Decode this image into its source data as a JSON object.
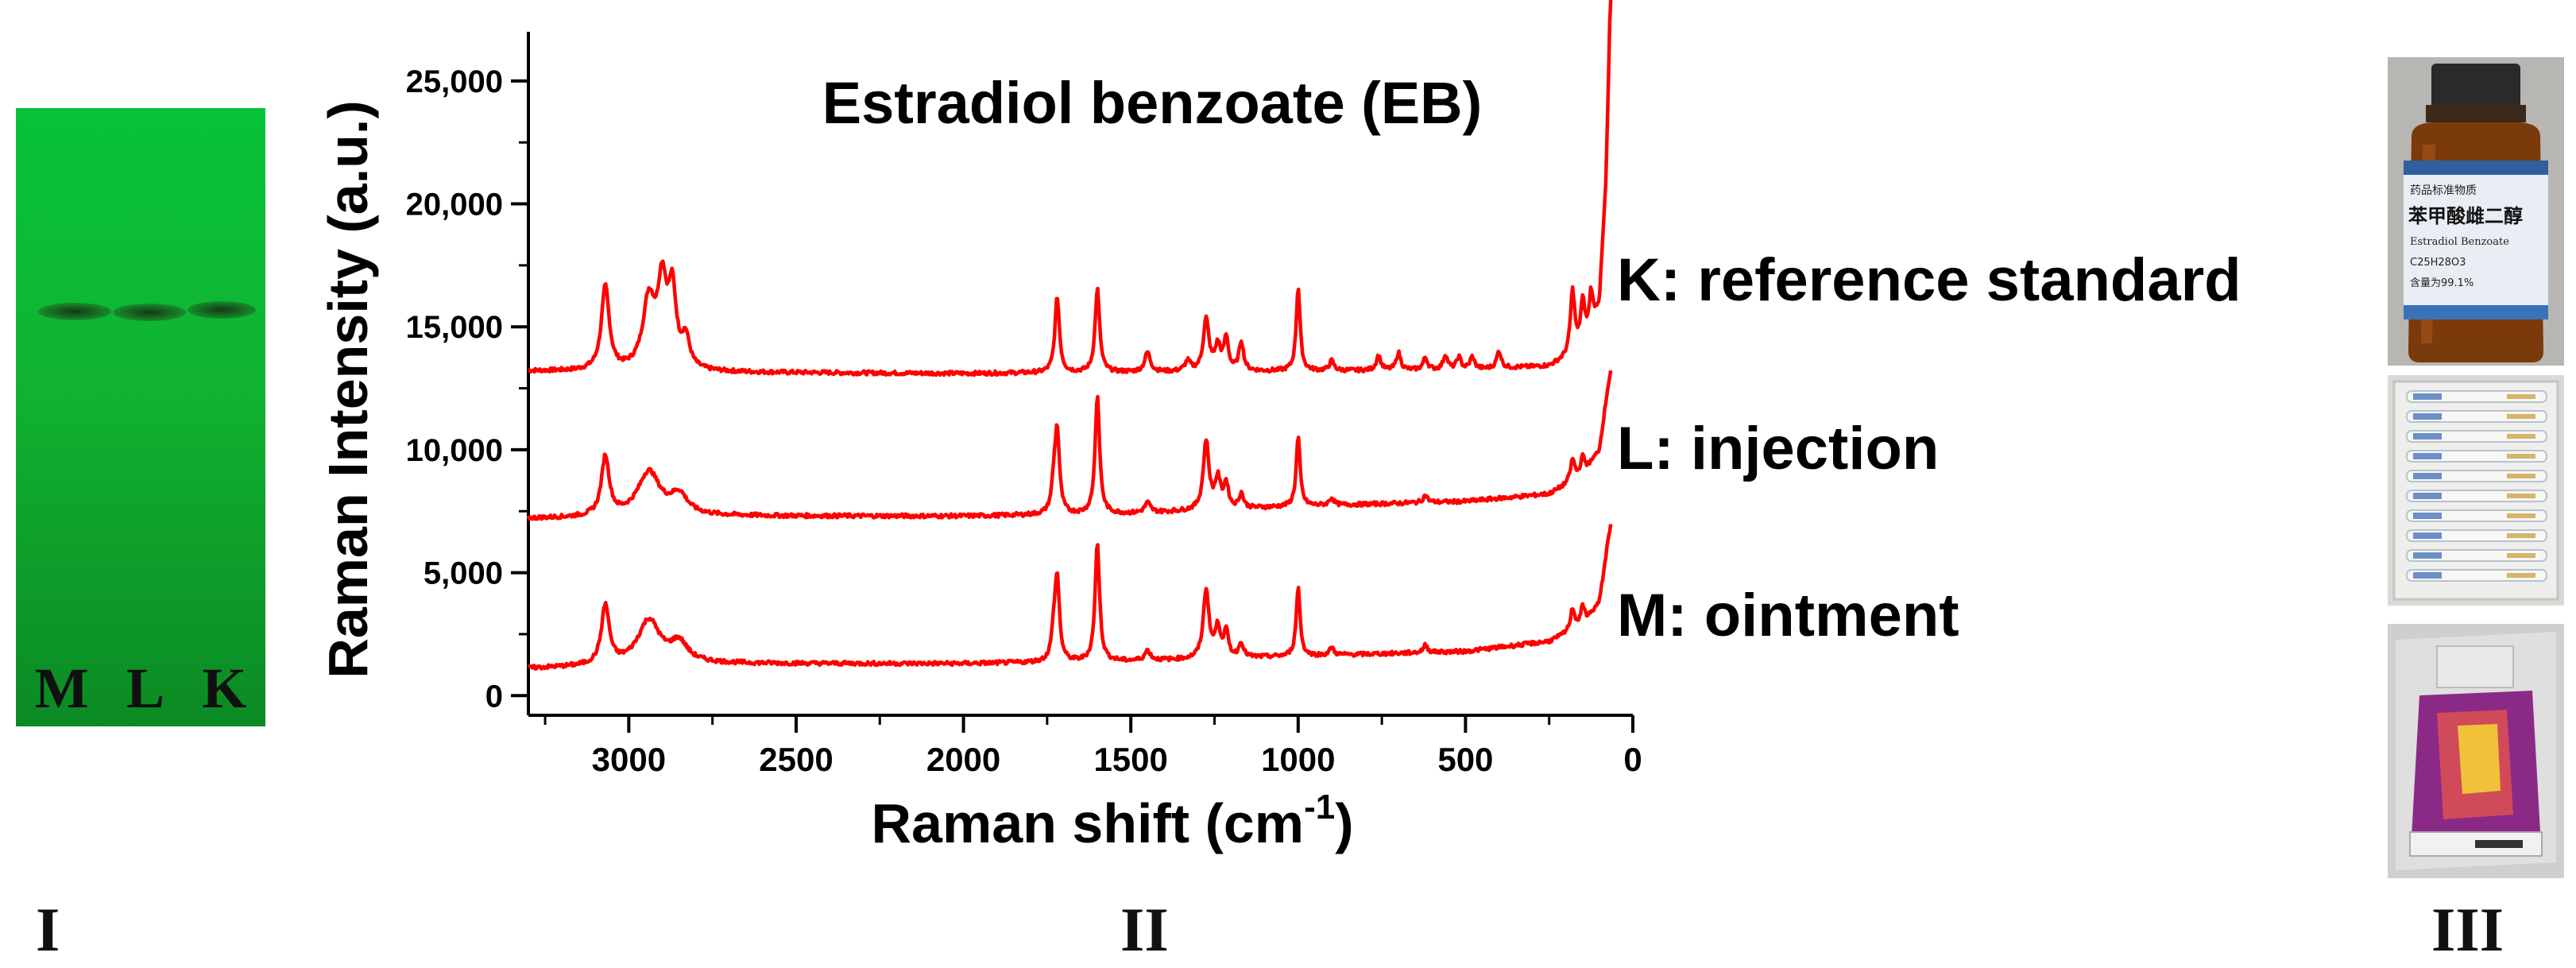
{
  "panels": {
    "tlc": {
      "panel_label": "I",
      "lane_labels": [
        "M",
        "L",
        "K"
      ]
    },
    "spectra": {
      "panel_label": "II"
    },
    "photos": {
      "panel_label": "III",
      "items": [
        {
          "name": "reference-standard-vial",
          "label_text": [
            "药品标准物质",
            "苯甲酸雌二醇",
            "Estradiol Benzoate",
            "C25H28O3",
            "含量为99.1%"
          ]
        },
        {
          "name": "injection-ampoules"
        },
        {
          "name": "ointment-tube"
        }
      ]
    }
  },
  "chart_data": {
    "type": "line",
    "title": "Estradiol benzoate (EB)",
    "xlabel": "Raman shift (cm",
    "xlabel_sup": "-1",
    "xlabel_close": ")",
    "ylabel": "Raman Intensity (a.u.)",
    "xlim": [
      3300,
      0
    ],
    "ylim": [
      -800,
      27000
    ],
    "x_reversed": true,
    "xticks": [
      3000,
      2500,
      2000,
      1500,
      1000,
      500,
      0
    ],
    "yticks": [
      0,
      5000,
      10000,
      15000,
      20000,
      25000
    ],
    "ytick_labels": [
      "0",
      "5,000",
      "10,000",
      "15,000",
      "20,000",
      "25,000"
    ],
    "line_color": "#ff0000",
    "grid": false,
    "peaks_cm1": [
      3070,
      2940,
      2890,
      1720,
      1600,
      1450,
      1275,
      1215,
      1170,
      1000,
      900,
      760,
      700,
      620,
      520,
      400,
      160
    ],
    "series": [
      {
        "name": "K: reference standard",
        "baseline": [
          [
            3300,
            13200
          ],
          [
            2800,
            13150
          ],
          [
            2000,
            13100
          ],
          [
            1500,
            13150
          ],
          [
            1000,
            13200
          ],
          [
            500,
            13250
          ],
          [
            250,
            13400
          ],
          [
            150,
            14000
          ],
          [
            100,
            16000
          ],
          [
            80,
            21000
          ],
          [
            65,
            29500
          ]
        ],
        "peaks": [
          [
            3070,
            3400,
            14
          ],
          [
            2940,
            2800,
            22
          ],
          [
            2900,
            3300,
            16
          ],
          [
            2870,
            3000,
            14
          ],
          [
            2830,
            1200,
            14
          ],
          [
            1720,
            3100,
            8
          ],
          [
            1600,
            3400,
            8
          ],
          [
            1450,
            800,
            10
          ],
          [
            1330,
            400,
            10
          ],
          [
            1275,
            2100,
            10
          ],
          [
            1240,
            1000,
            10
          ],
          [
            1215,
            1300,
            8
          ],
          [
            1170,
            1200,
            8
          ],
          [
            1000,
            3400,
            7
          ],
          [
            900,
            400,
            8
          ],
          [
            760,
            600,
            8
          ],
          [
            700,
            700,
            8
          ],
          [
            620,
            500,
            8
          ],
          [
            560,
            600,
            8
          ],
          [
            520,
            500,
            8
          ],
          [
            480,
            500,
            8
          ],
          [
            400,
            700,
            8
          ],
          [
            180,
            2600,
            8
          ],
          [
            150,
            2000,
            8
          ],
          [
            125,
            1400,
            6
          ]
        ]
      },
      {
        "name": "L: injection",
        "baseline": [
          [
            3300,
            7200
          ],
          [
            2800,
            7300
          ],
          [
            2000,
            7300
          ],
          [
            1500,
            7400
          ],
          [
            1000,
            7700
          ],
          [
            500,
            7900
          ],
          [
            250,
            8200
          ],
          [
            150,
            8900
          ],
          [
            100,
            10000
          ],
          [
            75,
            12500
          ],
          [
            65,
            13300
          ]
        ],
        "peaks": [
          [
            3070,
            2400,
            14
          ],
          [
            2940,
            1800,
            40
          ],
          [
            2850,
            800,
            30
          ],
          [
            1730,
            1000,
            8
          ],
          [
            1720,
            3300,
            8
          ],
          [
            1600,
            4800,
            8
          ],
          [
            1450,
            400,
            10
          ],
          [
            1275,
            2800,
            10
          ],
          [
            1240,
            1200,
            10
          ],
          [
            1215,
            1000,
            8
          ],
          [
            1170,
            600,
            8
          ],
          [
            1000,
            2800,
            7
          ],
          [
            900,
            300,
            8
          ],
          [
            620,
            300,
            8
          ],
          [
            180,
            900,
            8
          ],
          [
            150,
            800,
            8
          ]
        ]
      },
      {
        "name": "M: ointment",
        "baseline": [
          [
            3300,
            1100
          ],
          [
            2800,
            1300
          ],
          [
            2000,
            1300
          ],
          [
            1500,
            1400
          ],
          [
            1000,
            1600
          ],
          [
            500,
            1800
          ],
          [
            250,
            2200
          ],
          [
            150,
            2800
          ],
          [
            100,
            3800
          ],
          [
            75,
            6200
          ],
          [
            65,
            7100
          ]
        ],
        "peaks": [
          [
            3070,
            2400,
            14
          ],
          [
            2940,
            1800,
            40
          ],
          [
            2850,
            800,
            30
          ],
          [
            1730,
            1000,
            8
          ],
          [
            1720,
            3300,
            8
          ],
          [
            1600,
            4800,
            8
          ],
          [
            1450,
            400,
            10
          ],
          [
            1275,
            2800,
            10
          ],
          [
            1240,
            1200,
            10
          ],
          [
            1215,
            1000,
            8
          ],
          [
            1170,
            600,
            8
          ],
          [
            1000,
            2800,
            7
          ],
          [
            900,
            300,
            8
          ],
          [
            620,
            300,
            8
          ],
          [
            180,
            900,
            8
          ],
          [
            150,
            800,
            8
          ]
        ]
      }
    ]
  }
}
